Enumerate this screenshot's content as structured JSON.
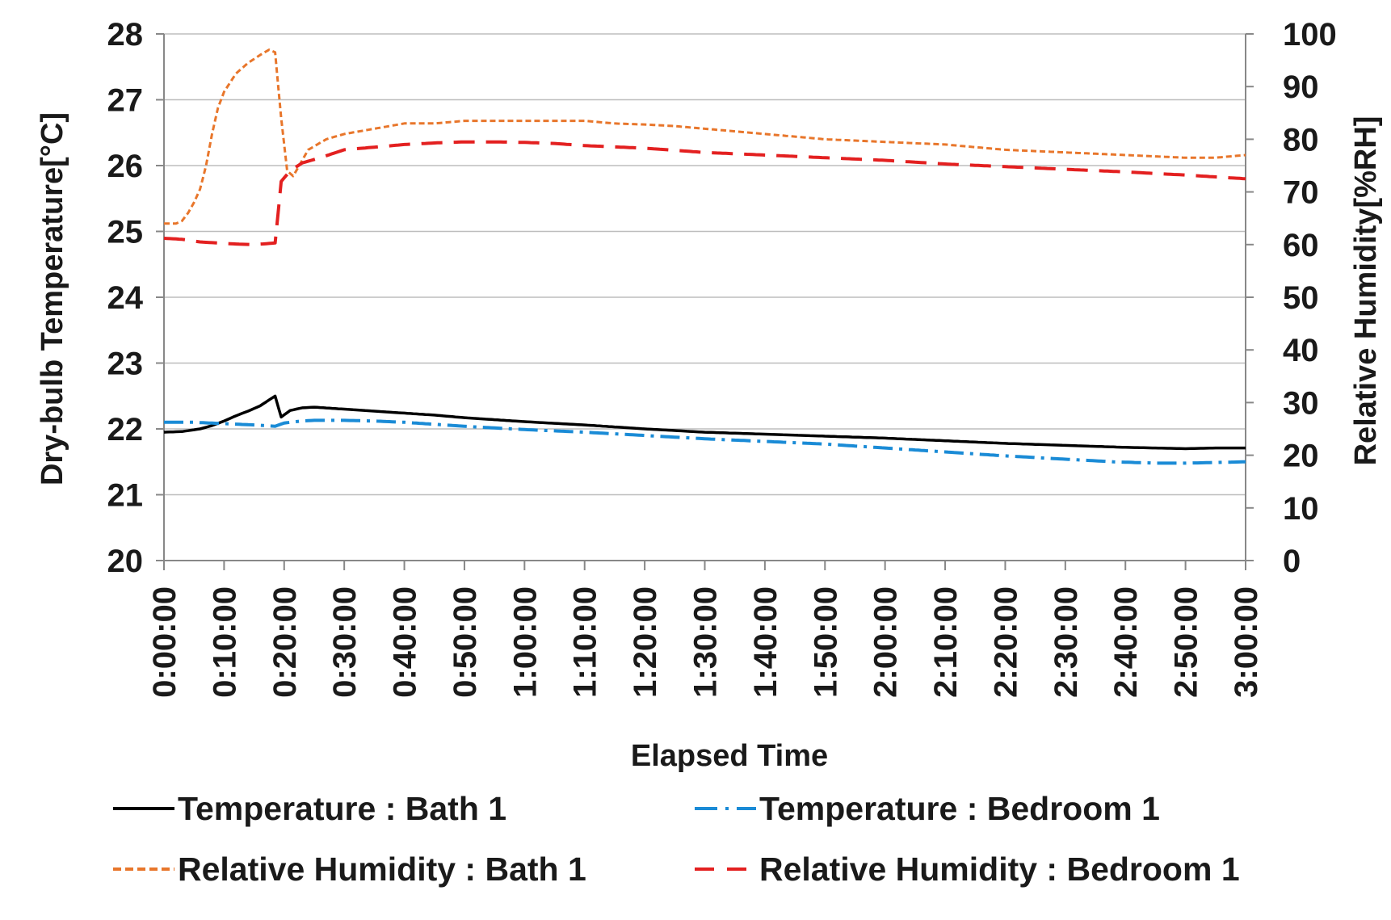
{
  "chart_data": {
    "type": "line",
    "title": "",
    "xlabel": "Elapsed Time",
    "ylabel": "Dry-bulb Temperature[°C]",
    "y2label": "Relative Humidity[%RH]",
    "x_unit": "minutes",
    "xlim": [
      0,
      180
    ],
    "ylim": [
      20,
      28
    ],
    "y2lim": [
      0,
      100
    ],
    "grid": true,
    "legend_position": "bottom",
    "x_ticks": [
      {
        "value": 0,
        "label": "0:00:00"
      },
      {
        "value": 10,
        "label": "0:10:00"
      },
      {
        "value": 20,
        "label": "0:20:00"
      },
      {
        "value": 30,
        "label": "0:30:00"
      },
      {
        "value": 40,
        "label": "0:40:00"
      },
      {
        "value": 50,
        "label": "0:50:00"
      },
      {
        "value": 60,
        "label": "1:00:00"
      },
      {
        "value": 70,
        "label": "1:10:00"
      },
      {
        "value": 80,
        "label": "1:20:00"
      },
      {
        "value": 90,
        "label": "1:30:00"
      },
      {
        "value": 100,
        "label": "1:40:00"
      },
      {
        "value": 110,
        "label": "1:50:00"
      },
      {
        "value": 120,
        "label": "2:00:00"
      },
      {
        "value": 130,
        "label": "2:10:00"
      },
      {
        "value": 140,
        "label": "2:20:00"
      },
      {
        "value": 150,
        "label": "2:30:00"
      },
      {
        "value": 160,
        "label": "2:40:00"
      },
      {
        "value": 170,
        "label": "2:50:00"
      },
      {
        "value": 180,
        "label": "3:00:00"
      }
    ],
    "y_ticks": [
      {
        "value": 20,
        "label": "20"
      },
      {
        "value": 21,
        "label": "21"
      },
      {
        "value": 22,
        "label": "22"
      },
      {
        "value": 23,
        "label": "23"
      },
      {
        "value": 24,
        "label": "24"
      },
      {
        "value": 25,
        "label": "25"
      },
      {
        "value": 26,
        "label": "26"
      },
      {
        "value": 27,
        "label": "27"
      },
      {
        "value": 28,
        "label": "28"
      }
    ],
    "y2_ticks": [
      {
        "value": 0,
        "label": "0"
      },
      {
        "value": 10,
        "label": "10"
      },
      {
        "value": 20,
        "label": "20"
      },
      {
        "value": 30,
        "label": "30"
      },
      {
        "value": 40,
        "label": "40"
      },
      {
        "value": 50,
        "label": "50"
      },
      {
        "value": 60,
        "label": "60"
      },
      {
        "value": 70,
        "label": "70"
      },
      {
        "value": 80,
        "label": "80"
      },
      {
        "value": 90,
        "label": "90"
      },
      {
        "value": 100,
        "label": "100"
      }
    ],
    "series": [
      {
        "name": "Temperature : Bath 1",
        "axis": "y",
        "color": "#000000",
        "dash": "solid",
        "points": [
          [
            0,
            21.95
          ],
          [
            3,
            21.96
          ],
          [
            6,
            22.0
          ],
          [
            8,
            22.05
          ],
          [
            10,
            22.12
          ],
          [
            12,
            22.2
          ],
          [
            14,
            22.27
          ],
          [
            16,
            22.35
          ],
          [
            17.5,
            22.44
          ],
          [
            18.5,
            22.5
          ],
          [
            19.5,
            22.18
          ],
          [
            21,
            22.28
          ],
          [
            23,
            22.32
          ],
          [
            25,
            22.33
          ],
          [
            30,
            22.3
          ],
          [
            35,
            22.27
          ],
          [
            40,
            22.24
          ],
          [
            45,
            22.21
          ],
          [
            50,
            22.17
          ],
          [
            55,
            22.14
          ],
          [
            60,
            22.11
          ],
          [
            70,
            22.06
          ],
          [
            80,
            22.0
          ],
          [
            90,
            21.95
          ],
          [
            100,
            21.92
          ],
          [
            110,
            21.89
          ],
          [
            120,
            21.86
          ],
          [
            130,
            21.82
          ],
          [
            140,
            21.78
          ],
          [
            150,
            21.75
          ],
          [
            160,
            21.72
          ],
          [
            165,
            21.71
          ],
          [
            170,
            21.7
          ],
          [
            175,
            21.71
          ],
          [
            180,
            21.71
          ]
        ]
      },
      {
        "name": "Temperature : Bedroom 1",
        "axis": "y",
        "color": "#1a8bd6",
        "dash": "dashdot",
        "points": [
          [
            0,
            22.1
          ],
          [
            5,
            22.1
          ],
          [
            10,
            22.08
          ],
          [
            15,
            22.06
          ],
          [
            18.5,
            22.04
          ],
          [
            20,
            22.09
          ],
          [
            23,
            22.12
          ],
          [
            25,
            22.13
          ],
          [
            30,
            22.13
          ],
          [
            35,
            22.12
          ],
          [
            40,
            22.1
          ],
          [
            45,
            22.07
          ],
          [
            50,
            22.04
          ],
          [
            60,
            21.99
          ],
          [
            70,
            21.95
          ],
          [
            80,
            21.9
          ],
          [
            90,
            21.85
          ],
          [
            100,
            21.81
          ],
          [
            110,
            21.77
          ],
          [
            120,
            21.71
          ],
          [
            130,
            21.65
          ],
          [
            140,
            21.59
          ],
          [
            150,
            21.54
          ],
          [
            158,
            21.5
          ],
          [
            165,
            21.48
          ],
          [
            170,
            21.48
          ],
          [
            175,
            21.49
          ],
          [
            180,
            21.5
          ]
        ]
      },
      {
        "name": "Relative Humidity : Bath 1",
        "axis": "y2",
        "color": "#e8762b",
        "dash": "dotted",
        "points": [
          [
            0,
            64
          ],
          [
            1,
            64
          ],
          [
            2,
            64
          ],
          [
            3,
            64.5
          ],
          [
            4,
            66
          ],
          [
            5,
            68
          ],
          [
            6,
            70.5
          ],
          [
            7,
            75
          ],
          [
            8,
            81
          ],
          [
            9,
            86
          ],
          [
            10,
            89
          ],
          [
            12,
            92.5
          ],
          [
            14,
            94.5
          ],
          [
            16,
            96
          ],
          [
            17.5,
            97
          ],
          [
            18.5,
            96.5
          ],
          [
            19.5,
            84
          ],
          [
            20.5,
            74
          ],
          [
            21.5,
            73
          ],
          [
            22.5,
            75
          ],
          [
            24,
            78
          ],
          [
            27,
            80
          ],
          [
            30,
            81
          ],
          [
            35,
            82
          ],
          [
            40,
            83
          ],
          [
            45,
            83
          ],
          [
            50,
            83.5
          ],
          [
            55,
            83.5
          ],
          [
            60,
            83.5
          ],
          [
            65,
            83.5
          ],
          [
            70,
            83.5
          ],
          [
            75,
            83
          ],
          [
            80,
            82.8
          ],
          [
            85,
            82.5
          ],
          [
            90,
            82
          ],
          [
            95,
            81.5
          ],
          [
            100,
            81
          ],
          [
            105,
            80.5
          ],
          [
            110,
            80
          ],
          [
            120,
            79.5
          ],
          [
            130,
            79
          ],
          [
            140,
            78
          ],
          [
            150,
            77.5
          ],
          [
            160,
            77
          ],
          [
            170,
            76.5
          ],
          [
            175,
            76.5
          ],
          [
            180,
            77
          ]
        ]
      },
      {
        "name": "Relative Humidity : Bedroom 1",
        "axis": "y2",
        "color": "#e32020",
        "dash": "dashed",
        "points": [
          [
            0,
            61.2
          ],
          [
            3,
            61
          ],
          [
            6,
            60.5
          ],
          [
            9,
            60.3
          ],
          [
            12,
            60.1
          ],
          [
            15,
            60
          ],
          [
            18.5,
            60.3
          ],
          [
            19,
            66
          ],
          [
            19.5,
            72
          ],
          [
            21,
            74
          ],
          [
            23,
            75.5
          ],
          [
            26,
            76.5
          ],
          [
            30,
            78
          ],
          [
            35,
            78.5
          ],
          [
            40,
            79
          ],
          [
            45,
            79.3
          ],
          [
            50,
            79.5
          ],
          [
            55,
            79.5
          ],
          [
            60,
            79.4
          ],
          [
            65,
            79.2
          ],
          [
            70,
            78.8
          ],
          [
            80,
            78.3
          ],
          [
            90,
            77.5
          ],
          [
            100,
            77
          ],
          [
            110,
            76.5
          ],
          [
            120,
            76
          ],
          [
            130,
            75.3
          ],
          [
            140,
            74.8
          ],
          [
            150,
            74.3
          ],
          [
            160,
            73.8
          ],
          [
            170,
            73.2
          ],
          [
            180,
            72.5
          ]
        ]
      }
    ]
  }
}
